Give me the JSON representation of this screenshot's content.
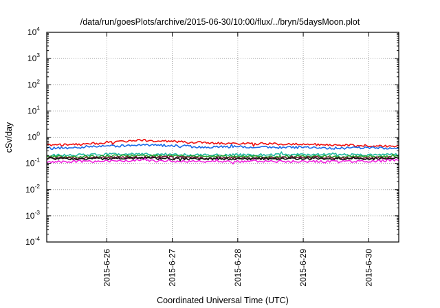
{
  "chart_data": {
    "type": "line",
    "title": "/data/run/goesPlots/archive/2015-06-30/10:00/flux/../bryn/5daysMoon.plot",
    "xlabel": "Coordinated Universal Time (UTC)",
    "ylabel": "cSv/day",
    "yscale": "log",
    "ylim": [
      0.0001,
      10000
    ],
    "xlim": [
      "2015-06-25 02:00",
      "2015-06-30 11:00"
    ],
    "grid": true,
    "y_ticks": [
      {
        "base": "10",
        "exp": "4"
      },
      {
        "base": "10",
        "exp": "3"
      },
      {
        "base": "10",
        "exp": "2"
      },
      {
        "base": "10",
        "exp": "1"
      },
      {
        "base": "10",
        "exp": "0"
      },
      {
        "base": "10",
        "exp": "-1"
      },
      {
        "base": "10",
        "exp": "-2"
      },
      {
        "base": "10",
        "exp": "-3"
      },
      {
        "base": "10",
        "exp": "-4"
      }
    ],
    "x_ticks": [
      "2015-6-26",
      "2015-6-27",
      "2015-6-28",
      "2015-6-29",
      "2015-6-30"
    ],
    "series": [
      {
        "color": "#ee1111",
        "x": [
          "2015-06-25 02:00",
          "2015-06-25 12:00",
          "2015-06-26 00:00",
          "2015-06-26 12:00",
          "2015-06-27 00:00",
          "2015-06-27 12:00",
          "2015-06-28 00:00",
          "2015-06-28 12:00",
          "2015-06-29 00:00",
          "2015-06-29 12:00",
          "2015-06-30 00:00",
          "2015-06-30 11:00"
        ],
        "values": [
          0.5,
          0.52,
          0.6,
          0.75,
          0.7,
          0.6,
          0.58,
          0.55,
          0.53,
          0.5,
          0.48,
          0.45
        ]
      },
      {
        "color": "#1a6ae6",
        "x": [
          "2015-06-25 02:00",
          "2015-06-25 12:00",
          "2015-06-26 00:00",
          "2015-06-26 12:00",
          "2015-06-27 00:00",
          "2015-06-27 12:00",
          "2015-06-28 00:00",
          "2015-06-28 12:00",
          "2015-06-29 00:00",
          "2015-06-29 12:00",
          "2015-06-30 00:00",
          "2015-06-30 11:00"
        ],
        "values": [
          0.37,
          0.4,
          0.45,
          0.5,
          0.48,
          0.42,
          0.43,
          0.41,
          0.4,
          0.38,
          0.39,
          0.38
        ]
      },
      {
        "color": "#20b8a0",
        "x": [
          "2015-06-25 02:00",
          "2015-06-25 12:00",
          "2015-06-26 00:00",
          "2015-06-26 12:00",
          "2015-06-27 00:00",
          "2015-06-27 12:00",
          "2015-06-28 00:00",
          "2015-06-28 12:00",
          "2015-06-29 00:00",
          "2015-06-29 12:00",
          "2015-06-30 00:00",
          "2015-06-30 11:00"
        ],
        "values": [
          0.2,
          0.21,
          0.22,
          0.23,
          0.22,
          0.21,
          0.21,
          0.21,
          0.22,
          0.21,
          0.21,
          0.22
        ]
      },
      {
        "color": "#2ca02c",
        "x": [
          "2015-06-25 02:00",
          "2015-06-25 12:00",
          "2015-06-26 00:00",
          "2015-06-26 12:00",
          "2015-06-27 00:00",
          "2015-06-27 12:00",
          "2015-06-28 00:00",
          "2015-06-28 12:00",
          "2015-06-29 00:00",
          "2015-06-29 12:00",
          "2015-06-30 00:00",
          "2015-06-30 11:00"
        ],
        "values": [
          0.18,
          0.18,
          0.19,
          0.2,
          0.19,
          0.19,
          0.18,
          0.18,
          0.19,
          0.18,
          0.18,
          0.19
        ]
      },
      {
        "color": "#7a1a3a",
        "x": [
          "2015-06-25 02:00",
          "2015-06-25 12:00",
          "2015-06-26 00:00",
          "2015-06-26 12:00",
          "2015-06-27 00:00",
          "2015-06-27 12:00",
          "2015-06-28 00:00",
          "2015-06-28 12:00",
          "2015-06-29 00:00",
          "2015-06-29 12:00",
          "2015-06-30 00:00",
          "2015-06-30 11:00"
        ],
        "values": [
          0.16,
          0.16,
          0.17,
          0.17,
          0.17,
          0.16,
          0.16,
          0.16,
          0.17,
          0.16,
          0.16,
          0.17
        ]
      },
      {
        "color": "#111111",
        "x": [
          "2015-06-25 02:00",
          "2015-06-25 12:00",
          "2015-06-26 00:00",
          "2015-06-26 12:00",
          "2015-06-27 00:00",
          "2015-06-27 12:00",
          "2015-06-28 00:00",
          "2015-06-28 12:00",
          "2015-06-29 00:00",
          "2015-06-29 12:00",
          "2015-06-30 00:00",
          "2015-06-30 11:00"
        ],
        "values": [
          0.15,
          0.15,
          0.15,
          0.16,
          0.15,
          0.15,
          0.15,
          0.15,
          0.15,
          0.15,
          0.15,
          0.16
        ]
      },
      {
        "color": "#ee22dd",
        "x": [
          "2015-06-25 02:00",
          "2015-06-25 12:00",
          "2015-06-26 00:00",
          "2015-06-26 12:00",
          "2015-06-27 00:00",
          "2015-06-27 12:00",
          "2015-06-28 00:00",
          "2015-06-28 12:00",
          "2015-06-29 00:00",
          "2015-06-29 12:00",
          "2015-06-30 00:00",
          "2015-06-30 11:00"
        ],
        "values": [
          0.11,
          0.12,
          0.12,
          0.13,
          0.12,
          0.12,
          0.12,
          0.12,
          0.12,
          0.12,
          0.12,
          0.13
        ]
      }
    ]
  }
}
